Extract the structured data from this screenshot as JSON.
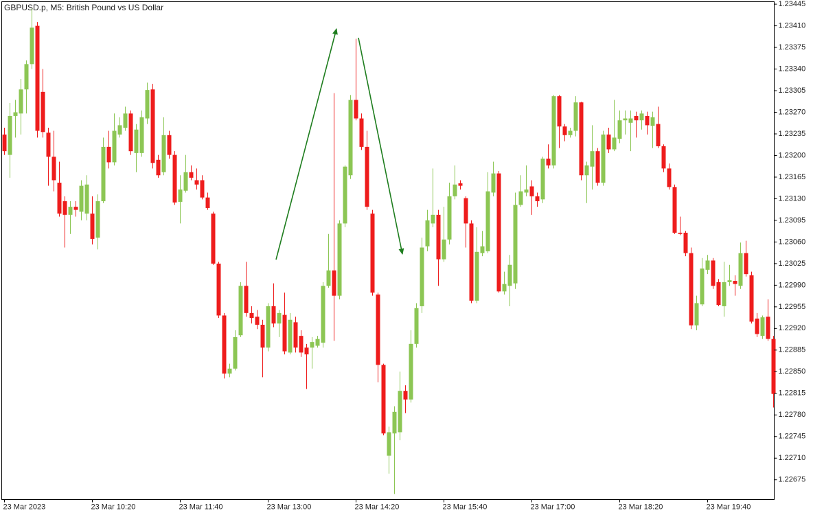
{
  "chart_data": {
    "type": "candlestick",
    "title": "GBPUSD.p, M5:  British Pound vs US Dollar",
    "up_color": "#8cc654",
    "down_color": "#ee1c1c",
    "ylim": [
      1.22643,
      1.23449
    ],
    "yticks": [
      1.23445,
      {
        "value": 1.2341,
        "label": "1.23410"
      },
      1.23375,
      {
        "value": 1.2334,
        "label": "1.23340"
      },
      1.23305,
      {
        "value": 1.2327,
        "label": "1.23270"
      },
      1.23235,
      {
        "value": 1.232,
        "label": "1.23200"
      },
      1.23165,
      {
        "value": 1.2313,
        "label": "1.23130"
      },
      1.23095,
      {
        "value": 1.2306,
        "label": "1.23060"
      },
      1.23025,
      {
        "value": 1.2299,
        "label": "1.22990"
      },
      1.22955,
      {
        "value": 1.2292,
        "label": "1.22920"
      },
      1.22885,
      {
        "value": 1.2285,
        "label": "1.22850"
      },
      1.22815,
      {
        "value": 1.2278,
        "label": "1.22780"
      },
      1.22745,
      {
        "value": 1.2271,
        "label": "1.22710"
      },
      1.22675
    ],
    "categories": [
      "23 Mar 2023",
      null,
      null,
      null,
      null,
      null,
      null,
      null,
      null,
      null,
      null,
      null,
      null,
      null,
      null,
      null,
      "23 Mar 10:20",
      null,
      null,
      null,
      null,
      null,
      null,
      null,
      null,
      null,
      null,
      null,
      null,
      null,
      null,
      null,
      "23 Mar 11:40",
      null,
      null,
      null,
      null,
      null,
      null,
      null,
      null,
      null,
      null,
      null,
      null,
      null,
      null,
      null,
      "23 Mar 13:00",
      null,
      null,
      null,
      null,
      null,
      null,
      null,
      null,
      null,
      null,
      null,
      null,
      null,
      null,
      null,
      "23 Mar 14:20",
      null,
      null,
      null,
      null,
      null,
      null,
      null,
      null,
      null,
      null,
      null,
      null,
      null,
      null,
      null,
      "23 Mar 15:40",
      null,
      null,
      null,
      null,
      null,
      null,
      null,
      null,
      null,
      null,
      null,
      null,
      null,
      null,
      null,
      "23 Mar 17:00",
      null,
      null,
      null,
      null,
      null,
      null,
      null,
      null,
      null,
      null,
      null,
      null,
      null,
      null,
      null,
      "23 Mar 18:20",
      null,
      null,
      null,
      null,
      null,
      null,
      null,
      null,
      null,
      null,
      null,
      null,
      null,
      null,
      null,
      "23 Mar 19:40",
      null,
      null,
      null,
      null,
      null,
      null,
      null,
      null,
      null,
      null,
      null,
      null
    ],
    "open": [
      1.23234,
      1.23201,
      1.23264,
      1.23268,
      1.23307,
      1.23348,
      1.2341,
      1.23303,
      1.23237,
      1.23198,
      1.23156,
      1.23126,
      1.23104,
      1.23117,
      1.23109,
      1.23106,
      1.23106,
      1.23067,
      1.23126,
      1.23214,
      1.23189,
      1.23234,
      1.23245,
      1.23268,
      1.23204,
      1.23204,
      1.2326,
      1.23307,
      1.23193,
      1.23173,
      1.23233,
      1.23201,
      1.23125,
      1.23143,
      1.23173,
      1.2316,
      1.2316,
      1.23132,
      1.23106,
      1.23025,
      1.22941,
      1.22847,
      1.22855,
      1.22909,
      1.22989,
      1.22945,
      1.22939,
      1.22926,
      1.22889,
      1.22956,
      1.22928,
      1.22942,
      1.22881,
      1.2293,
      1.22908,
      1.22889,
      1.22889,
      1.22892,
      1.22897,
      1.22989,
      1.23014,
      1.22973,
      1.2309,
      1.23168,
      1.2329,
      1.2326,
      1.23214,
      1.23106,
      1.22975,
      1.22861,
      1.22714,
      1.2275,
      1.22752,
      1.22819,
      1.22805,
      1.22895,
      1.22956,
      1.23053,
      1.2309,
      1.23104,
      1.23032,
      1.23064,
      1.23134,
      1.23155,
      1.23131,
      1.2309,
      1.22965,
      1.23042,
      1.23045,
      1.2314,
      1.23171,
      1.2298,
      1.22989,
      1.22993,
      1.2312,
      1.2314,
      1.2315,
      1.23134,
      1.23129,
      1.23195,
      1.23184,
      1.23296,
      1.23247,
      1.23233,
      1.2324,
      1.23286,
      1.23168,
      1.23182,
      1.23207,
      1.23156,
      1.23234,
      1.2321,
      1.23227,
      1.23257,
      1.23253,
      1.23264,
      1.23257,
      1.23264,
      1.23248,
      1.23251,
      1.23215,
      1.23179,
      1.23149,
      1.23075,
      1.23075,
      1.23042,
      1.22925,
      1.22959,
      1.23015,
      1.2303,
      1.22995,
      1.22956,
      1.22995,
      1.22997,
      1.22989,
      1.23042,
      1.23006,
      1.22936,
      1.22908,
      1.22939,
      1.22903
    ],
    "high": [
      1.23245,
      1.23285,
      1.2329,
      1.23324,
      1.23354,
      1.23438,
      1.23416,
      1.2334,
      1.23245,
      1.2324,
      1.2319,
      1.23134,
      1.23126,
      1.23126,
      1.2316,
      1.23168,
      1.23134,
      1.23137,
      1.23229,
      1.2324,
      1.23268,
      1.23262,
      1.23279,
      1.23273,
      1.23251,
      1.23273,
      1.23318,
      1.23316,
      1.23201,
      1.23262,
      1.2324,
      1.23207,
      1.23168,
      1.23201,
      1.23184,
      1.23179,
      1.23168,
      1.2314,
      1.23109,
      1.23028,
      1.22945,
      1.22863,
      1.22917,
      1.22995,
      1.23028,
      1.22956,
      1.2295,
      1.22934,
      1.22961,
      1.22993,
      1.2295,
      1.22978,
      1.22945,
      1.22939,
      1.22917,
      1.22895,
      1.22906,
      1.22908,
      1.22995,
      1.23073,
      1.23301,
      1.23095,
      1.23184,
      1.23298,
      1.23389,
      1.23268,
      1.2324,
      1.23112,
      1.22978,
      1.22863,
      1.22761,
      1.22794,
      1.2285,
      1.22828,
      1.22917,
      1.22961,
      1.23067,
      1.23112,
      1.23179,
      1.23112,
      1.23117,
      1.23156,
      1.23184,
      1.2316,
      1.23134,
      1.23095,
      1.23084,
      1.23078,
      1.23173,
      1.2319,
      1.23175,
      1.23012,
      1.23039,
      1.2314,
      1.23168,
      1.23184,
      1.2316,
      1.2314,
      1.23198,
      1.23218,
      1.23298,
      1.23298,
      1.23251,
      1.23245,
      1.23296,
      1.23287,
      1.2319,
      1.23249,
      1.23212,
      1.2324,
      1.23245,
      1.2329,
      1.23273,
      1.23273,
      1.23273,
      1.23271,
      1.23273,
      1.23271,
      1.23271,
      1.23279,
      1.23218,
      1.23187,
      1.23153,
      1.23101,
      1.23078,
      1.23051,
      1.22973,
      1.23034,
      1.23039,
      1.23034,
      1.23,
      1.23028,
      1.23023,
      1.23006,
      1.23059,
      1.23062,
      1.23012,
      1.22945,
      1.22941,
      1.22967,
      1.22908
    ],
    "low": [
      1.23201,
      1.23164,
      1.23229,
      1.23234,
      1.23268,
      1.2334,
      1.23229,
      1.23229,
      1.23151,
      1.23142,
      1.23101,
      1.23051,
      1.23073,
      1.23101,
      1.23095,
      1.23095,
      1.23056,
      1.23048,
      1.23123,
      1.23179,
      1.23184,
      1.23229,
      1.2324,
      1.23201,
      1.23173,
      1.23198,
      1.23251,
      1.23179,
      1.23164,
      1.23168,
      1.23195,
      1.2312,
      1.2309,
      1.2314,
      1.2316,
      1.23145,
      1.23129,
      1.23112,
      1.23023,
      1.22937,
      1.22839,
      1.22841,
      1.22852,
      1.22906,
      1.22939,
      1.22928,
      1.22919,
      1.22841,
      1.22883,
      1.22922,
      1.22906,
      1.22878,
      1.22878,
      1.22881,
      1.22874,
      1.22822,
      1.22855,
      1.22889,
      1.22889,
      1.22986,
      1.229,
      1.22967,
      1.23084,
      1.23162,
      1.23257,
      1.23209,
      1.23112,
      1.22973,
      1.22833,
      1.22747,
      1.22685,
      1.22652,
      1.22739,
      1.22783,
      1.228,
      1.22889,
      1.22945,
      1.23045,
      1.23084,
      1.22989,
      1.23028,
      1.23056,
      1.23129,
      1.23145,
      1.23051,
      1.22961,
      1.22961,
      1.23037,
      1.23042,
      1.23134,
      1.22978,
      1.22975,
      1.22956,
      1.22984,
      1.23117,
      1.23134,
      1.23104,
      1.23117,
      1.23123,
      1.23179,
      1.23179,
      1.23212,
      1.23223,
      1.23229,
      1.23231,
      1.2316,
      1.23123,
      1.23145,
      1.23151,
      1.23151,
      1.23204,
      1.23207,
      1.2322,
      1.23234,
      1.23207,
      1.23229,
      1.23242,
      1.23234,
      1.23212,
      1.23212,
      1.23173,
      1.23145,
      1.23073,
      1.23071,
      1.23037,
      1.22919,
      1.22917,
      1.22956,
      1.23008,
      1.22984,
      1.22956,
      1.22939,
      1.22989,
      1.22973,
      1.22984,
      1.23004,
      1.22928,
      1.22906,
      1.22903,
      1.229,
      1.22792
    ],
    "close": [
      1.23207,
      1.23264,
      1.2327,
      1.23307,
      1.23348,
      1.23407,
      1.2324,
      1.23238,
      1.23198,
      1.2316,
      1.23106,
      1.23104,
      1.23117,
      1.23112,
      1.23151,
      1.23153,
      1.23065,
      1.23126,
      1.23214,
      1.23189,
      1.2324,
      1.23249,
      1.23268,
      1.23207,
      1.23242,
      1.23262,
      1.23306,
      1.23188,
      1.23168,
      1.23233,
      1.23201,
      1.23124,
      1.23145,
      1.23173,
      1.23164,
      1.23153,
      1.23132,
      1.23115,
      1.23025,
      1.22941,
      1.22847,
      1.22855,
      1.22906,
      1.22989,
      1.22945,
      1.22937,
      1.22926,
      1.22889,
      1.22956,
      1.22928,
      1.22945,
      1.22883,
      1.22934,
      1.22889,
      1.22881,
      1.22878,
      1.22898,
      1.22903,
      1.22989,
      1.23014,
      1.22973,
      1.2309,
      1.23182,
      1.2329,
      1.2326,
      1.23214,
      1.23117,
      1.22978,
      1.22861,
      1.2275,
      1.22752,
      1.22785,
      1.22819,
      1.22805,
      1.22895,
      1.22953,
      1.23051,
      1.23095,
      1.23104,
      1.23032,
      1.23064,
      1.23134,
      1.23153,
      1.23151,
      1.2309,
      1.22965,
      1.23044,
      1.23053,
      1.23142,
      1.23171,
      1.2298,
      1.22992,
      1.23023,
      1.2312,
      1.23142,
      1.23145,
      1.23134,
      1.23126,
      1.23195,
      1.23184,
      1.23296,
      1.23247,
      1.23233,
      1.2324,
      1.23286,
      1.23168,
      1.23184,
      1.23207,
      1.23156,
      1.23234,
      1.2321,
      1.23229,
      1.23257,
      1.2326,
      1.2326,
      1.23257,
      1.23268,
      1.23249,
      1.23262,
      1.23215,
      1.23179,
      1.23149,
      1.23075,
      1.23073,
      1.23042,
      1.22925,
      1.22961,
      1.23017,
      1.2303,
      1.22989,
      1.22958,
      1.22995,
      1.22998,
      1.22992,
      1.23042,
      1.23008,
      1.22931,
      1.22911,
      1.22938,
      1.22903,
      1.22814
    ]
  }
}
